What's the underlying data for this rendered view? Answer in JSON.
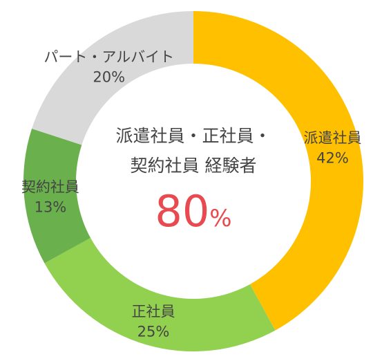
{
  "chart_data": {
    "type": "pie",
    "categories": [
      "派遣社員",
      "正社員",
      "契約社員",
      "パート・アルバイト"
    ],
    "values": [
      42,
      25,
      13,
      20
    ],
    "value_labels": [
      "42%",
      "25%",
      "13%",
      "20%"
    ],
    "colors": [
      "#ffc000",
      "#92d050",
      "#6ab04c",
      "#d9d9d9"
    ],
    "center": {
      "line1": "派遣社員・正社員・",
      "line2": "契約社員 経験者",
      "value": "80",
      "unit": "%"
    }
  }
}
